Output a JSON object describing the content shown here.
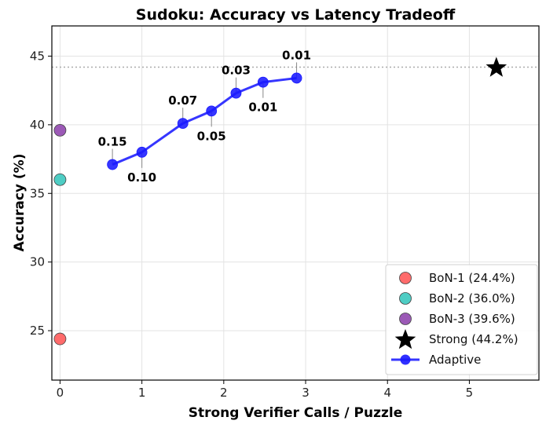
{
  "chart_data": {
    "type": "scatter",
    "title": "Sudoku: Accuracy vs Latency Tradeoff",
    "xlabel": "Strong Verifier Calls / Puzzle",
    "ylabel": "Accuracy (%)",
    "xlim": [
      -0.1,
      5.85
    ],
    "ylim": [
      21.4,
      47.2
    ],
    "xticks": [
      "0",
      "1",
      "2",
      "3",
      "4",
      "5"
    ],
    "yticks": [
      "25",
      "30",
      "35",
      "40",
      "45"
    ],
    "grid": true,
    "legend_position": "lower right",
    "reference_line": {
      "y": 44.2,
      "style": "dotted",
      "color": "#aaaaaa"
    },
    "series": [
      {
        "name": "BoN-1 (24.4%)",
        "kind": "point",
        "marker": "circle",
        "color": "#ff6b6b",
        "x": [
          0
        ],
        "y": [
          24.4
        ]
      },
      {
        "name": "BoN-2 (36.0%)",
        "kind": "point",
        "marker": "circle",
        "color": "#4ecdc4",
        "x": [
          0
        ],
        "y": [
          36.0
        ]
      },
      {
        "name": "BoN-3 (39.6%)",
        "kind": "point",
        "marker": "circle",
        "color": "#9b59b6",
        "x": [
          0
        ],
        "y": [
          39.6
        ]
      },
      {
        "name": "Strong (44.2%)",
        "kind": "point",
        "marker": "star",
        "color": "#000000",
        "x": [
          5.33
        ],
        "y": [
          44.2
        ]
      },
      {
        "name": "Adaptive",
        "kind": "line",
        "marker": "circle",
        "color": "#1a1aff",
        "x": [
          0.64,
          1.0,
          1.5,
          1.85,
          2.15,
          2.48,
          2.89
        ],
        "y": [
          37.1,
          38.0,
          40.1,
          41.0,
          42.3,
          43.1,
          43.4
        ],
        "annotations": [
          "0.15",
          "0.10",
          "0.07",
          "0.05",
          "0.03",
          "0.01",
          "0.01"
        ],
        "annotation_side": [
          "above",
          "below",
          "above",
          "below",
          "above",
          "below",
          "above"
        ]
      }
    ]
  }
}
